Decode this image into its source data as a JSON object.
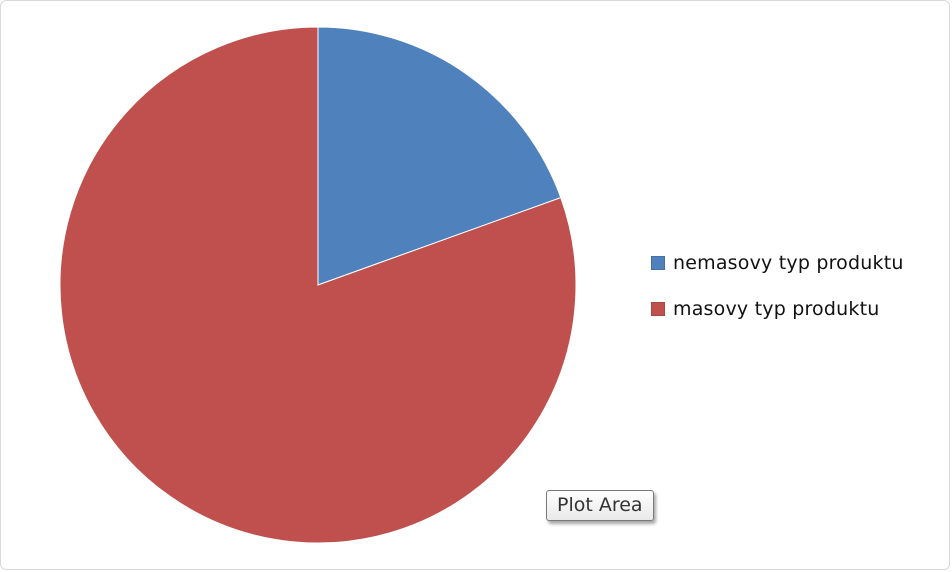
{
  "chart_data": {
    "type": "pie",
    "categories": [
      "nemasovy typ produktu",
      "masovy typ produktu"
    ],
    "values": [
      19.5,
      80.5
    ],
    "colors": [
      "#4f81bd",
      "#c0504d"
    ],
    "start_angle_deg": 0,
    "direction": "clockwise",
    "legend": {
      "position": "right",
      "entries": [
        "nemasovy typ produktu",
        "masovy typ produktu"
      ]
    }
  },
  "tooltip": {
    "text": "Plot Area"
  }
}
